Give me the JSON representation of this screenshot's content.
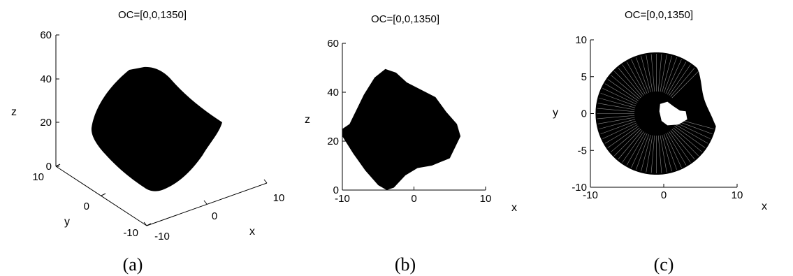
{
  "colors": {
    "shape": "#000000",
    "axes": "#000000",
    "background": "#ffffff"
  },
  "chart_data": [
    {
      "panel": "(a)",
      "type": "scatter",
      "view": "3d",
      "title": "OC=[0,0,1350]",
      "xlabel": "x",
      "ylabel": "y",
      "zlabel": "z",
      "xlim": [
        -10,
        10
      ],
      "ylim": [
        -10,
        10
      ],
      "zlim": [
        0,
        60
      ],
      "x_ticks": [
        "-10",
        "0",
        "10"
      ],
      "y_ticks": [
        "-10",
        "0",
        "10"
      ],
      "z_ticks": [
        "0",
        "20",
        "40",
        "60"
      ],
      "grid": false,
      "caption": "(a)"
    },
    {
      "panel": "(b)",
      "type": "scatter",
      "view": "x-z",
      "title": "OC=[0,0,1350]",
      "xlabel": "x",
      "ylabel": "z",
      "xlim": [
        -10,
        10
      ],
      "ylim": [
        0,
        60
      ],
      "x_ticks": [
        "-10",
        "0",
        "10"
      ],
      "y_ticks": [
        "0",
        "20",
        "40",
        "60"
      ],
      "grid": false,
      "outline": [
        [
          -10,
          25
        ],
        [
          -9,
          27
        ],
        [
          -7,
          39
        ],
        [
          -5.5,
          46
        ],
        [
          -4,
          49.5
        ],
        [
          -2.5,
          48
        ],
        [
          -1,
          44
        ],
        [
          1,
          41
        ],
        [
          3,
          38
        ],
        [
          4.5,
          32
        ],
        [
          6,
          27
        ],
        [
          6.5,
          22
        ],
        [
          5,
          13
        ],
        [
          2.5,
          10
        ],
        [
          0.5,
          9
        ],
        [
          -1.2,
          6
        ],
        [
          -2.8,
          1
        ],
        [
          -3.8,
          0
        ],
        [
          -5,
          2
        ],
        [
          -6.8,
          8
        ],
        [
          -8.5,
          15
        ],
        [
          -10,
          22
        ]
      ],
      "caption": "(b)"
    },
    {
      "panel": "(c)",
      "type": "scatter",
      "view": "x-y",
      "title": "OC=[0,0,1350]",
      "xlabel": "x",
      "ylabel": "y",
      "xlim": [
        -10,
        10
      ],
      "ylim": [
        -10,
        10
      ],
      "x_ticks": [
        "-10",
        "0",
        "10"
      ],
      "y_ticks": [
        "-10",
        "-5",
        "0",
        "5",
        "10"
      ],
      "grid": false,
      "center": [
        -1,
        0
      ],
      "inner_radius": 0.8,
      "outer_radius": 8.3,
      "hole_outline": [
        [
          -0.5,
          1.3
        ],
        [
          0.5,
          1.6
        ],
        [
          1.3,
          1.0
        ],
        [
          2.2,
          0.4
        ],
        [
          3.0,
          0.3
        ],
        [
          3.2,
          -0.8
        ],
        [
          2.0,
          -1.5
        ],
        [
          0.5,
          -1.6
        ],
        [
          -0.3,
          -1.0
        ],
        [
          -0.6,
          0.3
        ]
      ],
      "caption": "(c)"
    }
  ]
}
